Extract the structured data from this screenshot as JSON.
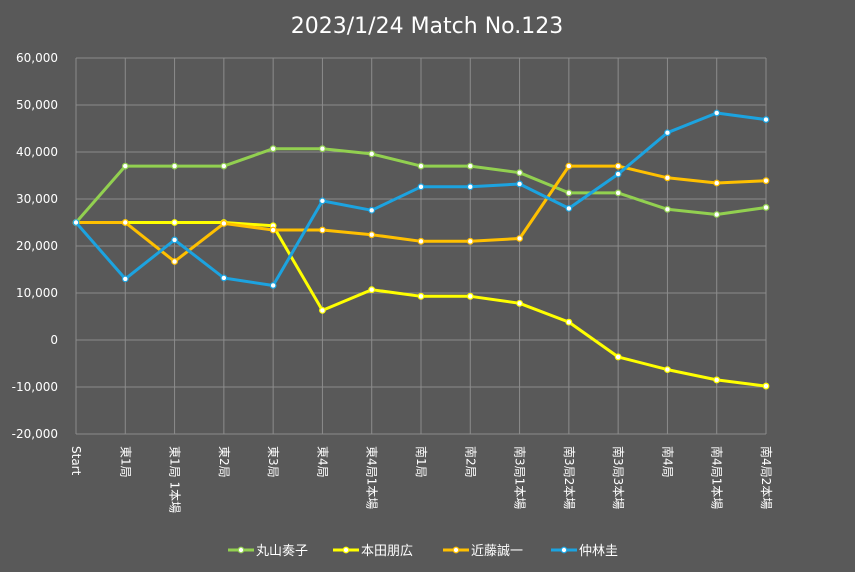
{
  "chart_data": {
    "type": "line",
    "title": "2023/1/24 Match No.123",
    "xlabel": "",
    "ylabel": "",
    "ylim": [
      -20000,
      60000
    ],
    "yticks": [
      60000,
      50000,
      40000,
      30000,
      20000,
      10000,
      0,
      -10000,
      -20000
    ],
    "ytick_labels": [
      "60,000",
      "50,000",
      "40,000",
      "30,000",
      "20,000",
      "10,000",
      "0",
      "-10,000",
      "-20,000"
    ],
    "grid": true,
    "legend_position": "bottom",
    "categories": [
      "Start",
      "東1局",
      "東1局 1本場",
      "東2局",
      "東3局",
      "東4局",
      "東4局1本場",
      "南1局",
      "南2局",
      "南3局1本場",
      "南3局2本場",
      "南3局3本場",
      "南4局",
      "南4局1本場",
      "南4局2本場"
    ],
    "series": [
      {
        "name": "丸山奏子",
        "color": "#92D050",
        "values": [
          25000,
          37000,
          37000,
          37000,
          40700,
          40700,
          39600,
          37000,
          37000,
          35600,
          31300,
          31300,
          27800,
          26700,
          28200
        ]
      },
      {
        "name": "本田朋広",
        "color": "#FFFF00",
        "values": [
          25000,
          25000,
          25000,
          25000,
          24300,
          6300,
          10700,
          9300,
          9300,
          7800,
          3800,
          -3600,
          -6300,
          -8500,
          -9800
        ]
      },
      {
        "name": "近藤誠一",
        "color": "#FFC000",
        "values": [
          25000,
          25000,
          16700,
          24800,
          23400,
          23400,
          22400,
          21000,
          21000,
          21600,
          37000,
          37000,
          34500,
          33400,
          33900
        ]
      },
      {
        "name": "仲林圭",
        "color": "#1CA3E0",
        "values": [
          25000,
          13000,
          21300,
          13200,
          11600,
          29600,
          27600,
          32600,
          32600,
          33200,
          28000,
          35300,
          44100,
          48300,
          46900
        ]
      }
    ]
  }
}
